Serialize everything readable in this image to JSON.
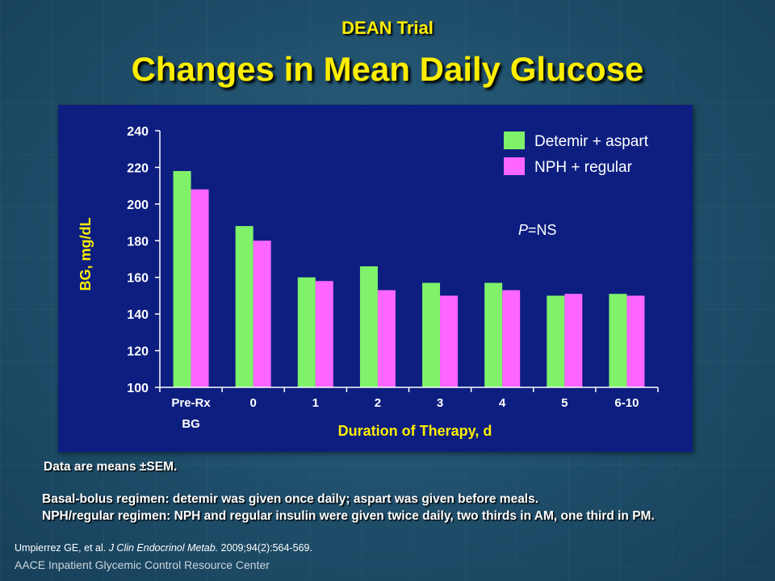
{
  "slide": {
    "subtitle": "DEAN Trial",
    "title": "Changes in Mean Daily Glucose",
    "note_means": "Data are means ±SEM.",
    "note_basal": "Basal-bolus regimen: detemir was given once daily; aspart was given before meals.",
    "note_nph": "NPH/regular regimen: NPH and regular insulin were given twice daily, two thirds in AM, one third in PM.",
    "citation_authors": "Umpierrez GE, et al. ",
    "citation_journal": "J Clin Endocrinol Metab.",
    "citation_rest": " 2009;94(2):564-569.",
    "footer": "AACE Inpatient Glycemic Control Resource Center"
  },
  "chart_data": {
    "type": "bar",
    "categories": [
      "Pre-Rx BG",
      "0",
      "1",
      "2",
      "3",
      "4",
      "5",
      "6-10"
    ],
    "category_labels": [
      [
        "Pre-Rx",
        "BG"
      ],
      [
        "0"
      ],
      [
        "1"
      ],
      [
        "2"
      ],
      [
        "3"
      ],
      [
        "4"
      ],
      [
        "5"
      ],
      [
        "6-10"
      ]
    ],
    "series": [
      {
        "name": "Detemir + aspart",
        "color": "#80f26a",
        "values": [
          218,
          188,
          160,
          166,
          157,
          157,
          150,
          151
        ]
      },
      {
        "name": "NPH + regular",
        "color": "#ff66ff",
        "values": [
          208,
          180,
          158,
          153,
          150,
          153,
          151,
          150
        ]
      }
    ],
    "xlabel": "Duration of Therapy, d",
    "ylabel": "BG, mg/dL",
    "ylim": [
      100,
      240
    ],
    "yticks": [
      100,
      120,
      140,
      160,
      180,
      200,
      220,
      240
    ],
    "annotation_italic": "P",
    "annotation_rest": "=NS",
    "legend_position": "top-right",
    "grid": false
  }
}
